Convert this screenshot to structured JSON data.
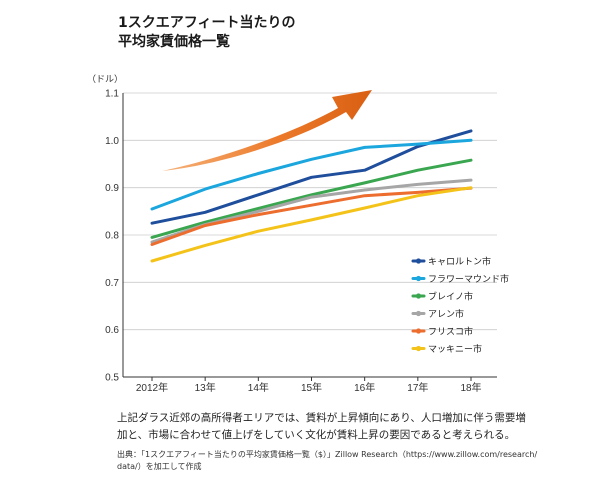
{
  "title_lines": [
    "1スクエアフィート当たりの",
    "平均家賃価格一覧"
  ],
  "chart_data": {
    "type": "line",
    "title": "1スクエアフィート当たりの平均家賃価格一覧",
    "ylabel": "（ドル）",
    "xlabel": "",
    "categories": [
      "2012年",
      "13年",
      "14年",
      "15年",
      "16年",
      "17年",
      "18年"
    ],
    "ylim": [
      0.5,
      1.1
    ],
    "yticks": [
      "0.5",
      "0.6",
      "0.7",
      "0.8",
      "0.9",
      "1.0",
      "1.1"
    ],
    "grid": "horizontal",
    "legend_position": "bottom-right",
    "series": [
      {
        "name": "キャロルトン市",
        "color": "#1f4e9c",
        "values": [
          0.825,
          0.848,
          0.885,
          0.922,
          0.937,
          0.987,
          1.02
        ]
      },
      {
        "name": "フラワーマウンド市",
        "color": "#1ba6de",
        "values": [
          0.855,
          0.897,
          0.93,
          0.96,
          0.985,
          0.992,
          1.0
        ]
      },
      {
        "name": "ブレイノ市",
        "color": "#3aa650",
        "values": [
          0.795,
          0.827,
          0.856,
          0.885,
          0.91,
          0.937,
          0.958
        ]
      },
      {
        "name": "アレン市",
        "color": "#a6a6a6",
        "values": [
          0.785,
          0.822,
          0.85,
          0.88,
          0.895,
          0.907,
          0.916
        ]
      },
      {
        "name": "フリスコ市",
        "color": "#ec6d2e",
        "values": [
          0.78,
          0.82,
          0.843,
          0.863,
          0.883,
          0.89,
          0.899
        ]
      },
      {
        "name": "マッキニー市",
        "color": "#f4c31a",
        "values": [
          0.745,
          0.778,
          0.808,
          0.832,
          0.857,
          0.883,
          0.9
        ]
      }
    ]
  },
  "caption_lines": [
    "上記ダラス近郊の高所得者エリアでは、賃料が上昇傾向にあり、人口増加に伴う需要増",
    "加と、市場に合わせて値上げをしていく文化が賃料上昇の要因であると考えられる。"
  ],
  "source_lines": [
    "出典：「1スクエアフィート当たりの平均家賃価格一覧（$）」Zillow Research（https://www.zillow.com/research/",
    "data/）を加工して作成"
  ],
  "colors": {
    "arrow": "#e8701f",
    "grid": "#cccccc",
    "axis": "#333333"
  }
}
